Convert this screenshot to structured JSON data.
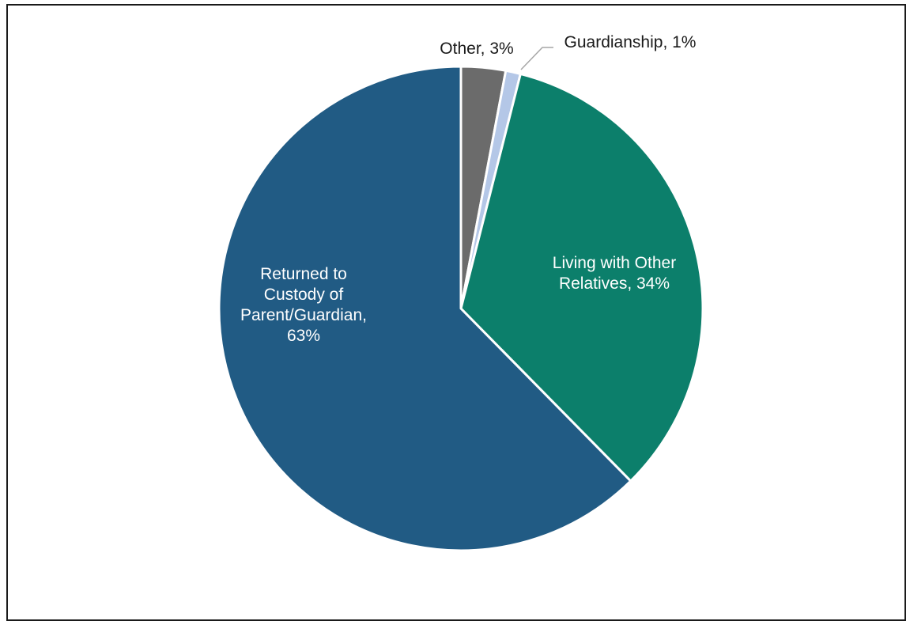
{
  "chart_data": {
    "type": "pie",
    "title": "",
    "categories": [
      "Other",
      "Guardianship",
      "Living with Other Relatives",
      "Returned to Custody of Parent/Guardian"
    ],
    "values": [
      3,
      1,
      34,
      63
    ],
    "unit": "%",
    "colors": [
      "#6b6b6b",
      "#b4c7e7",
      "#0c7f6b",
      "#215b84"
    ],
    "labels": [
      {
        "lines": [
          "Other, 3%"
        ],
        "color": "#1a1a1a"
      },
      {
        "lines": [
          "Guardianship, 1%"
        ],
        "color": "#1a1a1a"
      },
      {
        "lines": [
          "Living with Other",
          "Relatives, 34%"
        ],
        "color": "#ffffff"
      },
      {
        "lines": [
          "Returned to",
          "Custody of",
          "Parent/Guardian,",
          "63%"
        ],
        "color": "#ffffff"
      }
    ],
    "legend": "none",
    "grid": false
  }
}
